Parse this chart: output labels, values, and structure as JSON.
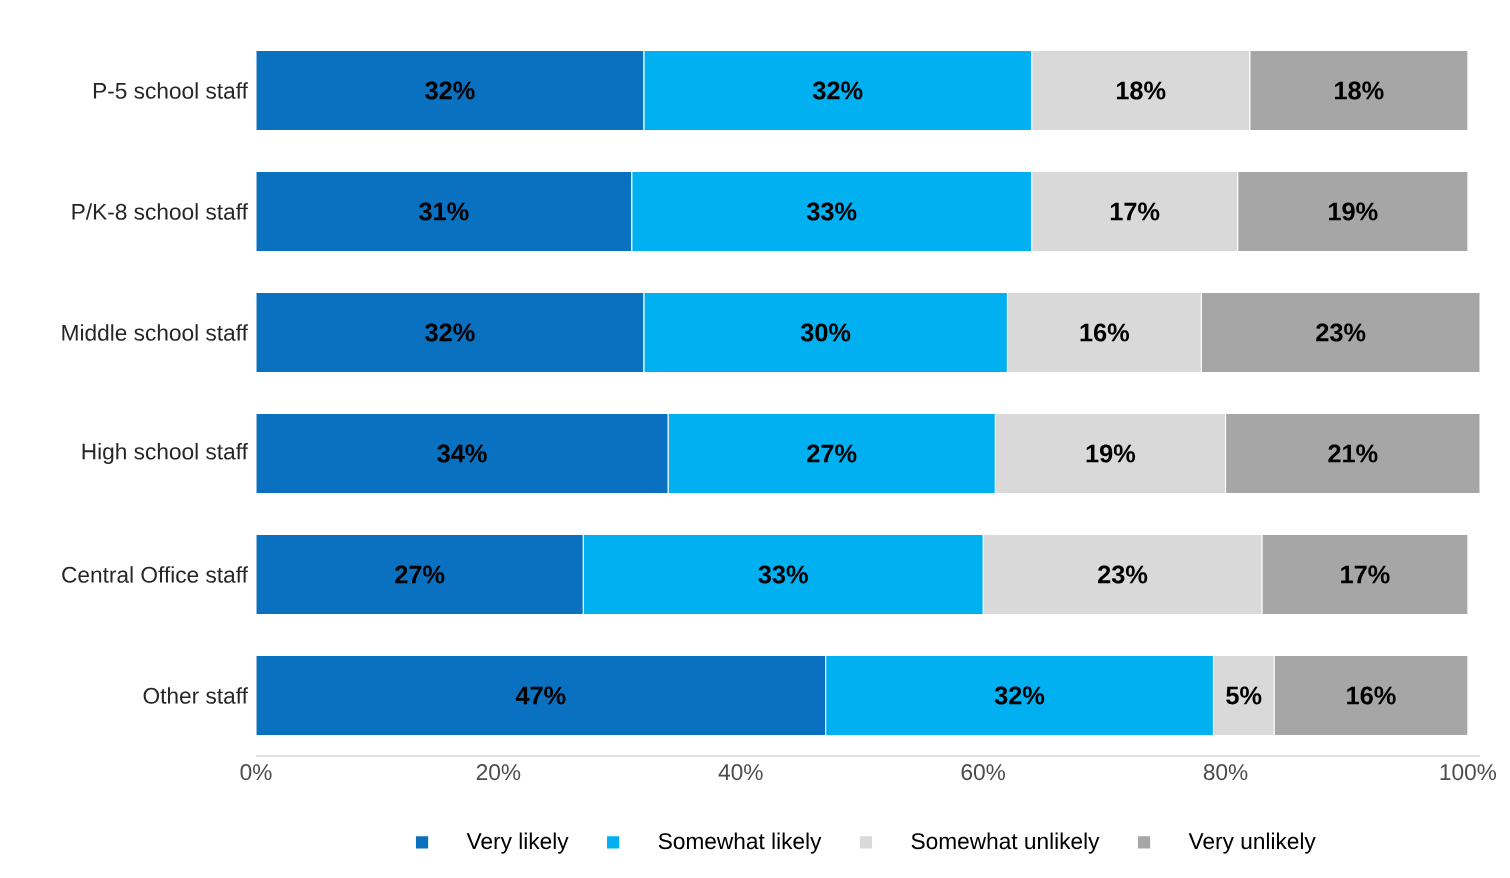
{
  "chart_data": {
    "type": "bar",
    "orientation": "horizontal",
    "stacked": true,
    "categories": [
      "P-5 school staff",
      "P/K-8 school staff",
      "Middle school staff",
      "High school staff",
      "Central Office staff",
      "Other staff"
    ],
    "series": [
      {
        "name": "Very likely",
        "color": "#0a70c0",
        "values": [
          32,
          31,
          32,
          34,
          27,
          47
        ],
        "value_labels": [
          "32%",
          "31%",
          "32%",
          "34%",
          "27%",
          "47%"
        ]
      },
      {
        "name": "Somewhat likely",
        "color": "#00b0f0",
        "values": [
          32,
          33,
          30,
          27,
          33,
          32
        ],
        "value_labels": [
          "32%",
          "33%",
          "30%",
          "27%",
          "33%",
          "32%"
        ]
      },
      {
        "name": "Somewhat unlikely",
        "color": "#d9d9d9",
        "values": [
          18,
          17,
          16,
          19,
          23,
          5
        ],
        "value_labels": [
          "18%",
          "17%",
          "16%",
          "19%",
          "23%",
          "5%"
        ]
      },
      {
        "name": "Very unlikely",
        "color": "#a6a6a6",
        "values": [
          18,
          19,
          23,
          21,
          17,
          16
        ],
        "value_labels": [
          "18%",
          "19%",
          "23%",
          "21%",
          "17%",
          "16%"
        ]
      }
    ],
    "xlim": [
      0,
      101
    ],
    "xticks": [
      {
        "value": 0,
        "label": "0%"
      },
      {
        "value": 20,
        "label": "20%"
      },
      {
        "value": 40,
        "label": "40%"
      },
      {
        "value": 60,
        "label": "60%"
      },
      {
        "value": 80,
        "label": "80%"
      },
      {
        "value": 100,
        "label": "100%"
      }
    ],
    "legend": "bottom"
  }
}
